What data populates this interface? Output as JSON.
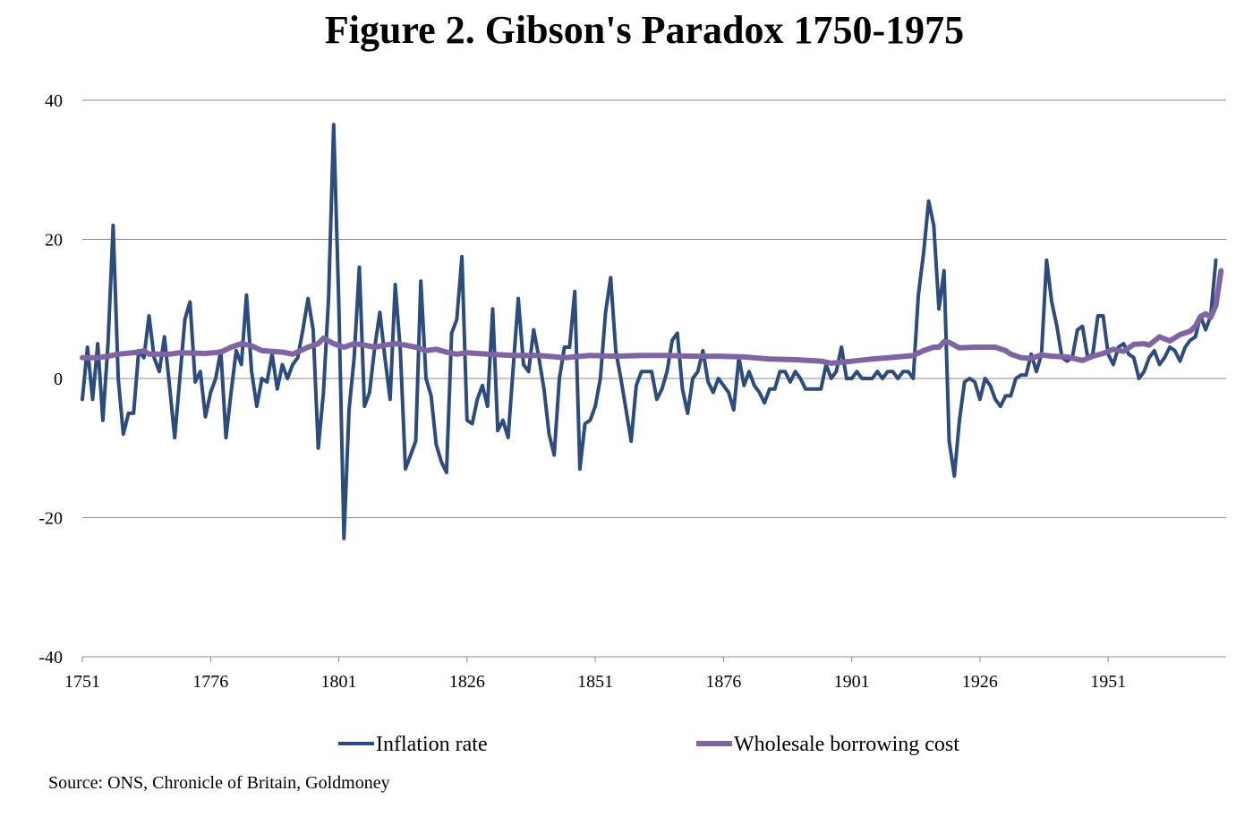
{
  "title": "Figure 2. Gibson's Paradox 1750-1975",
  "source": "Source: ONS, Chronicle of Britain, Goldmoney",
  "chart_data": {
    "type": "line",
    "title": "Figure 2. Gibson's Paradox 1750-1975",
    "xlabel": "",
    "ylabel": "",
    "xlim": [
      1751,
      1974
    ],
    "ylim": [
      -40,
      40
    ],
    "x_ticks": [
      1751,
      1776,
      1801,
      1826,
      1851,
      1876,
      1901,
      1926,
      1951
    ],
    "y_ticks": [
      40,
      20,
      0,
      -20,
      -40
    ],
    "grid": true,
    "legend_position": "bottom",
    "series": [
      {
        "name": "Inflation rate",
        "color": "#2c4b7e",
        "points": [
          [
            1751,
            -3
          ],
          [
            1752,
            4.5
          ],
          [
            1753,
            -3
          ],
          [
            1754,
            5
          ],
          [
            1755,
            -6
          ],
          [
            1756,
            5
          ],
          [
            1757,
            22
          ],
          [
            1758,
            0
          ],
          [
            1759,
            -8
          ],
          [
            1760,
            -5
          ],
          [
            1761,
            -5
          ],
          [
            1762,
            4
          ],
          [
            1763,
            3
          ],
          [
            1764,
            9
          ],
          [
            1765,
            3
          ],
          [
            1766,
            1
          ],
          [
            1767,
            6
          ],
          [
            1768,
            -1
          ],
          [
            1769,
            -8.5
          ],
          [
            1770,
            0
          ],
          [
            1771,
            8.5
          ],
          [
            1772,
            11
          ],
          [
            1773,
            -0.5
          ],
          [
            1774,
            1
          ],
          [
            1775,
            -5.5
          ],
          [
            1776,
            -2
          ],
          [
            1777,
            0
          ],
          [
            1778,
            4
          ],
          [
            1779,
            -8.5
          ],
          [
            1780,
            -2
          ],
          [
            1781,
            4
          ],
          [
            1782,
            2
          ],
          [
            1783,
            12
          ],
          [
            1784,
            1
          ],
          [
            1785,
            -4
          ],
          [
            1786,
            0
          ],
          [
            1787,
            -0.5
          ],
          [
            1788,
            3.5
          ],
          [
            1789,
            -1.5
          ],
          [
            1790,
            2
          ],
          [
            1791,
            0
          ],
          [
            1792,
            2
          ],
          [
            1793,
            3
          ],
          [
            1794,
            7
          ],
          [
            1795,
            11.5
          ],
          [
            1796,
            7
          ],
          [
            1797,
            -10
          ],
          [
            1798,
            -2
          ],
          [
            1799,
            11.5
          ],
          [
            1800,
            36.5
          ],
          [
            1801,
            11
          ],
          [
            1802,
            -23
          ],
          [
            1803,
            -4.5
          ],
          [
            1804,
            3
          ],
          [
            1805,
            16
          ],
          [
            1806,
            -4
          ],
          [
            1807,
            -2
          ],
          [
            1808,
            4.5
          ],
          [
            1809,
            9.5
          ],
          [
            1810,
            3
          ],
          [
            1811,
            -3
          ],
          [
            1812,
            13.5
          ],
          [
            1813,
            4
          ],
          [
            1814,
            -13
          ],
          [
            1815,
            -11
          ],
          [
            1816,
            -9
          ],
          [
            1817,
            14
          ],
          [
            1818,
            0
          ],
          [
            1819,
            -2.5
          ],
          [
            1820,
            -9.5
          ],
          [
            1821,
            -12
          ],
          [
            1822,
            -13.5
          ],
          [
            1823,
            6.5
          ],
          [
            1824,
            8.5
          ],
          [
            1825,
            17.5
          ],
          [
            1826,
            -6
          ],
          [
            1827,
            -6.5
          ],
          [
            1828,
            -3
          ],
          [
            1829,
            -1
          ],
          [
            1830,
            -4
          ],
          [
            1831,
            10
          ],
          [
            1832,
            -7.5
          ],
          [
            1833,
            -6
          ],
          [
            1834,
            -8.5
          ],
          [
            1835,
            1.5
          ],
          [
            1836,
            11.5
          ],
          [
            1837,
            2
          ],
          [
            1838,
            1
          ],
          [
            1839,
            7
          ],
          [
            1840,
            3
          ],
          [
            1841,
            -1.5
          ],
          [
            1842,
            -8
          ],
          [
            1843,
            -11
          ],
          [
            1844,
            0
          ],
          [
            1845,
            4.5
          ],
          [
            1846,
            4.5
          ],
          [
            1847,
            12.5
          ],
          [
            1848,
            -13
          ],
          [
            1849,
            -6.5
          ],
          [
            1850,
            -6
          ],
          [
            1851,
            -4
          ],
          [
            1852,
            0
          ],
          [
            1853,
            9.5
          ],
          [
            1854,
            14.5
          ],
          [
            1855,
            4
          ],
          [
            1856,
            0
          ],
          [
            1857,
            -4.5
          ],
          [
            1858,
            -9
          ],
          [
            1859,
            -1
          ],
          [
            1860,
            1
          ],
          [
            1861,
            1
          ],
          [
            1862,
            1
          ],
          [
            1863,
            -3
          ],
          [
            1864,
            -1.5
          ],
          [
            1865,
            1
          ],
          [
            1866,
            5.5
          ],
          [
            1867,
            6.5
          ],
          [
            1868,
            -1.5
          ],
          [
            1869,
            -5
          ],
          [
            1870,
            0
          ],
          [
            1871,
            1
          ],
          [
            1872,
            4
          ],
          [
            1873,
            -0.5
          ],
          [
            1874,
            -2
          ],
          [
            1875,
            0
          ],
          [
            1876,
            -1
          ],
          [
            1877,
            -2
          ],
          [
            1878,
            -4.5
          ],
          [
            1879,
            3
          ],
          [
            1880,
            -1
          ],
          [
            1881,
            1
          ],
          [
            1882,
            -1
          ],
          [
            1883,
            -2
          ],
          [
            1884,
            -3.5
          ],
          [
            1885,
            -1.5
          ],
          [
            1886,
            -1.5
          ],
          [
            1887,
            1
          ],
          [
            1888,
            1
          ],
          [
            1889,
            -0.5
          ],
          [
            1890,
            1
          ],
          [
            1891,
            0
          ],
          [
            1892,
            -1.5
          ],
          [
            1893,
            -1.5
          ],
          [
            1894,
            -1.5
          ],
          [
            1895,
            -1.5
          ],
          [
            1896,
            2
          ],
          [
            1897,
            0
          ],
          [
            1898,
            1
          ],
          [
            1899,
            4.5
          ],
          [
            1900,
            0
          ],
          [
            1901,
            0
          ],
          [
            1902,
            1
          ],
          [
            1903,
            0
          ],
          [
            1904,
            0
          ],
          [
            1905,
            0
          ],
          [
            1906,
            1
          ],
          [
            1907,
            0
          ],
          [
            1908,
            1
          ],
          [
            1909,
            1
          ],
          [
            1910,
            0
          ],
          [
            1911,
            1
          ],
          [
            1912,
            1
          ],
          [
            1913,
            0
          ],
          [
            1914,
            12
          ],
          [
            1915,
            18
          ],
          [
            1916,
            25.5
          ],
          [
            1917,
            22
          ],
          [
            1918,
            10
          ],
          [
            1919,
            15.5
          ],
          [
            1920,
            -9
          ],
          [
            1921,
            -14
          ],
          [
            1922,
            -6
          ],
          [
            1923,
            -0.5
          ],
          [
            1924,
            0
          ],
          [
            1925,
            -0.5
          ],
          [
            1926,
            -3
          ],
          [
            1927,
            0
          ],
          [
            1928,
            -1
          ],
          [
            1929,
            -3
          ],
          [
            1930,
            -4
          ],
          [
            1931,
            -2.5
          ],
          [
            1932,
            -2.5
          ],
          [
            1933,
            0
          ],
          [
            1934,
            0.5
          ],
          [
            1935,
            0.5
          ],
          [
            1936,
            3.5
          ],
          [
            1937,
            1
          ],
          [
            1938,
            3.5
          ],
          [
            1939,
            17
          ],
          [
            1940,
            11
          ],
          [
            1941,
            7.5
          ],
          [
            1942,
            3
          ],
          [
            1943,
            2.5
          ],
          [
            1944,
            3
          ],
          [
            1945,
            7
          ],
          [
            1946,
            7.5
          ],
          [
            1947,
            3
          ],
          [
            1948,
            3.5
          ],
          [
            1949,
            9
          ],
          [
            1950,
            9
          ],
          [
            1951,
            3.5
          ],
          [
            1952,
            2
          ],
          [
            1953,
            4.5
          ],
          [
            1954,
            5
          ],
          [
            1955,
            3.5
          ],
          [
            1956,
            3
          ],
          [
            1957,
            0
          ],
          [
            1958,
            1
          ],
          [
            1959,
            3
          ],
          [
            1960,
            4
          ],
          [
            1961,
            2
          ],
          [
            1962,
            3
          ],
          [
            1963,
            4.5
          ],
          [
            1964,
            4
          ],
          [
            1965,
            2.5
          ],
          [
            1966,
            4.5
          ],
          [
            1967,
            5.5
          ],
          [
            1968,
            6
          ],
          [
            1969,
            9
          ],
          [
            1970,
            7
          ],
          [
            1971,
            9
          ],
          [
            1972,
            17
          ]
        ]
      },
      {
        "name": "Wholesale borrowing cost",
        "color": "#7f64a4",
        "points": [
          [
            1751,
            3
          ],
          [
            1754,
            3
          ],
          [
            1756,
            3.2
          ],
          [
            1758,
            3.5
          ],
          [
            1762,
            3.8
          ],
          [
            1763,
            4
          ],
          [
            1764,
            3.5
          ],
          [
            1768,
            3.5
          ],
          [
            1770,
            3.7
          ],
          [
            1775,
            3.6
          ],
          [
            1778,
            3.8
          ],
          [
            1780,
            4.5
          ],
          [
            1782,
            5
          ],
          [
            1784,
            4.7
          ],
          [
            1786,
            4
          ],
          [
            1790,
            3.8
          ],
          [
            1792,
            3.5
          ],
          [
            1795,
            4.5
          ],
          [
            1797,
            5
          ],
          [
            1798,
            5.8
          ],
          [
            1800,
            5
          ],
          [
            1802,
            4.5
          ],
          [
            1804,
            5
          ],
          [
            1806,
            4.8
          ],
          [
            1808,
            4.5
          ],
          [
            1810,
            4.8
          ],
          [
            1812,
            5
          ],
          [
            1814,
            4.8
          ],
          [
            1816,
            4.5
          ],
          [
            1818,
            4
          ],
          [
            1820,
            4.2
          ],
          [
            1822,
            3.8
          ],
          [
            1824,
            3.5
          ],
          [
            1826,
            3.7
          ],
          [
            1830,
            3.5
          ],
          [
            1835,
            3.3
          ],
          [
            1840,
            3.3
          ],
          [
            1845,
            3
          ],
          [
            1850,
            3.3
          ],
          [
            1855,
            3.2
          ],
          [
            1860,
            3.3
          ],
          [
            1865,
            3.3
          ],
          [
            1870,
            3.2
          ],
          [
            1875,
            3.2
          ],
          [
            1880,
            3.1
          ],
          [
            1885,
            2.8
          ],
          [
            1890,
            2.7
          ],
          [
            1895,
            2.5
          ],
          [
            1897,
            2.2
          ],
          [
            1900,
            2.4
          ],
          [
            1905,
            2.8
          ],
          [
            1910,
            3.1
          ],
          [
            1913,
            3.3
          ],
          [
            1915,
            4
          ],
          [
            1917,
            4.5
          ],
          [
            1918,
            4.5
          ],
          [
            1919,
            5.3
          ],
          [
            1920,
            5.2
          ],
          [
            1922,
            4.4
          ],
          [
            1925,
            4.5
          ],
          [
            1927,
            4.5
          ],
          [
            1929,
            4.5
          ],
          [
            1931,
            4
          ],
          [
            1932,
            3.5
          ],
          [
            1934,
            3
          ],
          [
            1936,
            2.9
          ],
          [
            1938,
            3.4
          ],
          [
            1940,
            3.2
          ],
          [
            1943,
            3.1
          ],
          [
            1946,
            2.6
          ],
          [
            1948,
            3.2
          ],
          [
            1950,
            3.6
          ],
          [
            1952,
            4.2
          ],
          [
            1954,
            3.9
          ],
          [
            1956,
            4.9
          ],
          [
            1958,
            5
          ],
          [
            1959,
            4.8
          ],
          [
            1961,
            6
          ],
          [
            1963,
            5.4
          ],
          [
            1965,
            6.3
          ],
          [
            1967,
            6.8
          ],
          [
            1968,
            7.5
          ],
          [
            1969,
            8.9
          ],
          [
            1970,
            9.3
          ],
          [
            1971,
            8.8
          ],
          [
            1972,
            10.5
          ],
          [
            1973,
            15.5
          ]
        ]
      }
    ]
  }
}
